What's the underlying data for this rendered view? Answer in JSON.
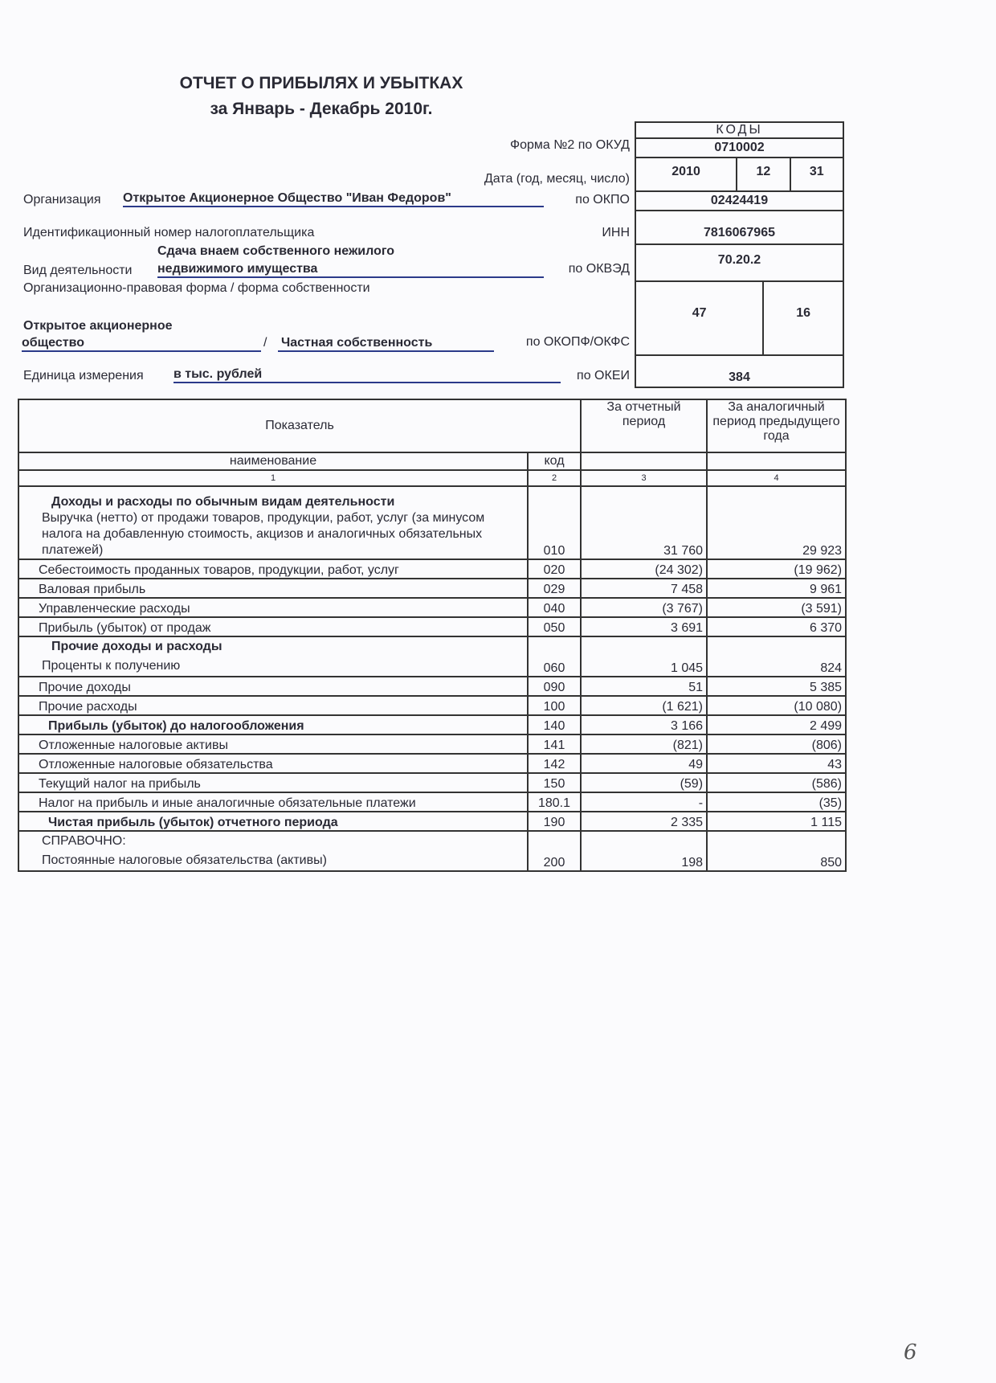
{
  "header": {
    "title": "ОТЧЕТ О ПРИБЫЛЯХ И УБЫТКАХ",
    "period": "за Январь - Декабрь 2010г."
  },
  "codes": {
    "heading": "КОДЫ",
    "form_label": "Форма №2 по ОКУД",
    "form_code": "0710002",
    "date_label": "Дата (год, месяц, число)",
    "year": "2010",
    "month": "12",
    "day": "31",
    "okpo_label": "по ОКПО",
    "okpo": "02424419",
    "inn_label": "ИНН",
    "inn": "7816067965",
    "okved_label": "по ОКВЭД",
    "okved": "70.20.2",
    "okopf_label": "по ОКОПФ/ОКФС",
    "okopf": "47",
    "okfs": "16",
    "okei_label": "по ОКЕИ",
    "okei": "384"
  },
  "fields": {
    "org_label": "Организация",
    "org_value": "Открытое Акционерное Общество \"Иван Федоров\"",
    "inn_label": "Идентификационный номер налогоплательщика",
    "activity_label": "Вид деятельности",
    "activity_line1": "Сдача внаем собственного нежилого",
    "activity_line2": "недвижимого имущества",
    "legal_form_label": "Организационно-правовая форма / форма собственности",
    "legal_form_line1": "Открытое акционерное",
    "legal_form_line2": "общество",
    "slash": "/",
    "ownership": "Частная собственность",
    "unit_label": "Единица измерения",
    "unit_value": "в тыс. рублей"
  },
  "table": {
    "col_indicator": "Показатель",
    "col_current": "За отчетный период",
    "col_previous": "За аналогичный период предыдущего года",
    "col_name": "наименование",
    "col_code": "код",
    "col_nums": [
      "1",
      "2",
      "3",
      "4"
    ],
    "section1": "Доходы и расходы по обычным видам деятельности",
    "section2": "Прочие доходы и расходы",
    "reference": "СПРАВОЧНО:",
    "rows": [
      {
        "name": "Выручка (нетто) от продажи товаров, продукции, работ, услуг (за минусом налога на добавленную стоимость, акцизов и аналогичных обязательных платежей)",
        "code": "010",
        "current": "31 760",
        "previous": "29 923"
      },
      {
        "name": "Себестоимость проданных товаров, продукции, работ, услуг",
        "code": "020",
        "current": "(24 302)",
        "previous": "(19 962)"
      },
      {
        "name": "Валовая прибыль",
        "code": "029",
        "current": "7 458",
        "previous": "9 961"
      },
      {
        "name": "Управленческие расходы",
        "code": "040",
        "current": "(3 767)",
        "previous": "(3 591)"
      },
      {
        "name": "Прибыль (убыток) от продаж",
        "code": "050",
        "current": "3 691",
        "previous": "6 370"
      },
      {
        "name": "Проценты к получению",
        "code": "060",
        "current": "1 045",
        "previous": "824"
      },
      {
        "name": "Прочие доходы",
        "code": "090",
        "current": "51",
        "previous": "5 385"
      },
      {
        "name": "Прочие расходы",
        "code": "100",
        "current": "(1 621)",
        "previous": "(10 080)"
      },
      {
        "name": "Прибыль (убыток) до налогообложения",
        "code": "140",
        "current": "3 166",
        "previous": "2 499"
      },
      {
        "name": "Отложенные налоговые активы",
        "code": "141",
        "current": "(821)",
        "previous": "(806)"
      },
      {
        "name": "Отложенные налоговые обязательства",
        "code": "142",
        "current": "49",
        "previous": "43"
      },
      {
        "name": "Текущий налог на прибыль",
        "code": "150",
        "current": "(59)",
        "previous": "(586)"
      },
      {
        "name": "Налог на прибыль и иные аналогичные обязательные платежи",
        "code": "180.1",
        "current": "-",
        "previous": "(35)"
      },
      {
        "name": "Чистая прибыль (убыток) отчетного периода",
        "code": "190",
        "current": "2 335",
        "previous": "1 115"
      },
      {
        "name": "Постоянные налоговые обязательства (активы)",
        "code": "200",
        "current": "198",
        "previous": "850"
      }
    ]
  },
  "page_number": "6"
}
